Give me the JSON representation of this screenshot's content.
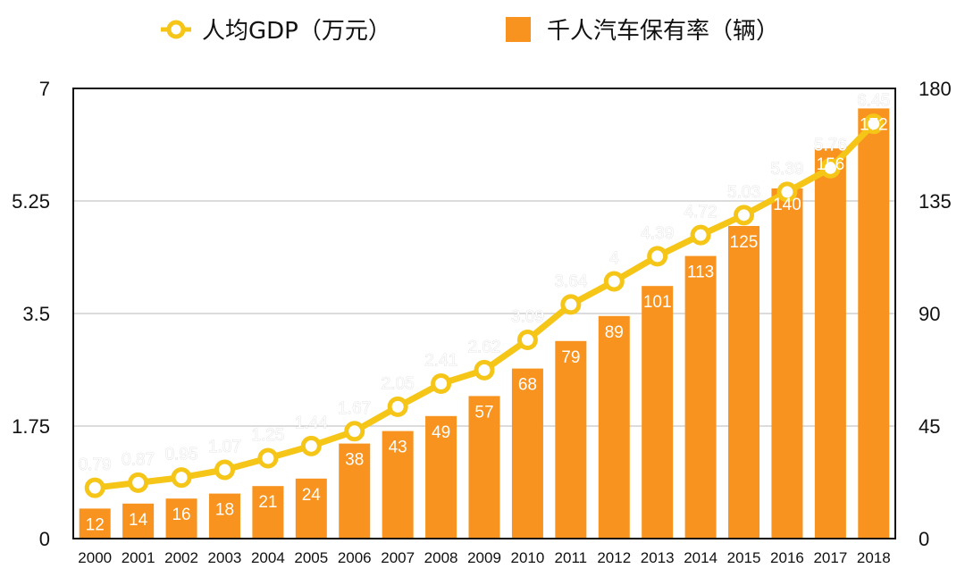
{
  "chart_data": {
    "type": "bar",
    "categories": [
      "2000",
      "2001",
      "2002",
      "2003",
      "2004",
      "2005",
      "2006",
      "2007",
      "2008",
      "2009",
      "2010",
      "2011",
      "2012",
      "2013",
      "2014",
      "2015",
      "2016",
      "2017",
      "2018"
    ],
    "series": [
      {
        "name": "千人汽车保有率（辆）",
        "type": "bar",
        "axis": "right",
        "color": "#F7931E",
        "values": [
          12,
          14,
          16,
          18,
          21,
          24,
          38,
          43,
          49,
          57,
          68,
          79,
          89,
          101,
          113,
          125,
          140,
          156,
          172
        ]
      },
      {
        "name": "人均GDP（万元）",
        "type": "line",
        "axis": "left",
        "color": "#F5C518",
        "values": [
          0.79,
          0.87,
          0.95,
          1.07,
          1.25,
          1.44,
          1.67,
          2.05,
          2.41,
          2.62,
          3.09,
          3.64,
          4,
          4.39,
          4.72,
          5.03,
          5.39,
          5.76,
          6.45
        ]
      }
    ],
    "y_left": {
      "ticks": [
        "0",
        "1.75",
        "3.5",
        "5.25",
        "7"
      ],
      "ylim": [
        0,
        7
      ]
    },
    "y_right": {
      "ticks": [
        "0",
        "45",
        "90",
        "135",
        "180"
      ],
      "ylim": [
        0,
        180
      ]
    },
    "grid": true,
    "legend_position": "top-center",
    "colors": {
      "bar": "#F7931E",
      "line": "#F5C518",
      "marker_fill": "#ffffff",
      "grid": "#c8c8c8",
      "frame": "#111111"
    }
  }
}
